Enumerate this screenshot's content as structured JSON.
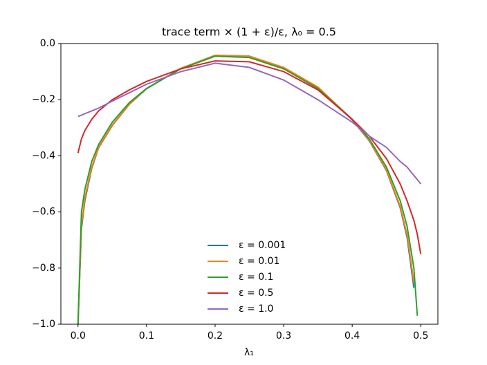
{
  "chart_data": {
    "type": "line",
    "title": "trace term × (1 + ε)/ε, λ₀ = 0.5",
    "x_label": "λ₁",
    "x": [
      0.0,
      0.005,
      0.01,
      0.02,
      0.03,
      0.05,
      0.075,
      0.1,
      0.15,
      0.2,
      0.25,
      0.3,
      0.35,
      0.4,
      0.425,
      0.45,
      0.47,
      0.48,
      0.49,
      0.495,
      0.5
    ],
    "series": [
      {
        "name": "ε = 0.001",
        "color": "#1f77b4",
        "values": [
          -1.0,
          -0.66,
          -0.56,
          -0.445,
          -0.372,
          -0.292,
          -0.216,
          -0.161,
          -0.089,
          -0.042,
          -0.045,
          -0.086,
          -0.156,
          -0.272,
          -0.347,
          -0.453,
          -0.585,
          -0.69,
          -0.87,
          null,
          null
        ]
      },
      {
        "name": "ε = 0.01",
        "color": "#ff7f0e",
        "values": [
          -1.0,
          -0.65,
          -0.55,
          -0.44,
          -0.37,
          -0.29,
          -0.215,
          -0.16,
          -0.088,
          -0.042,
          -0.045,
          -0.085,
          -0.155,
          -0.27,
          -0.345,
          -0.45,
          -0.58,
          -0.68,
          -0.85,
          null,
          null
        ]
      },
      {
        "name": "ε = 0.1",
        "color": "#2ca02c",
        "values": [
          -1.0,
          -0.6,
          -0.52,
          -0.42,
          -0.36,
          -0.28,
          -0.21,
          -0.16,
          -0.09,
          -0.045,
          -0.05,
          -0.09,
          -0.16,
          -0.27,
          -0.34,
          -0.44,
          -0.56,
          -0.65,
          -0.8,
          -0.97,
          null
        ]
      },
      {
        "name": "ε = 0.5",
        "color": "#d62728",
        "values": [
          -0.39,
          -0.34,
          -0.31,
          -0.27,
          -0.24,
          -0.2,
          -0.165,
          -0.135,
          -0.09,
          -0.062,
          -0.065,
          -0.1,
          -0.165,
          -0.27,
          -0.33,
          -0.41,
          -0.5,
          -0.56,
          -0.63,
          -0.68,
          -0.75
        ]
      },
      {
        "name": "ε = 1.0",
        "color": "#9467bd",
        "values": [
          -0.26,
          -0.255,
          -0.25,
          -0.24,
          -0.23,
          -0.205,
          -0.175,
          -0.145,
          -0.1,
          -0.07,
          -0.085,
          -0.13,
          -0.2,
          -0.28,
          -0.33,
          -0.37,
          -0.42,
          -0.44,
          -0.47,
          -0.485,
          -0.5
        ]
      }
    ],
    "xlim": [
      -0.025,
      0.525
    ],
    "ylim": [
      -1.0,
      0.0
    ],
    "xticks": [
      {
        "value": 0,
        "label": "0.0"
      },
      0.1,
      0.2,
      0.3,
      0.4,
      0.5
    ],
    "yticks": [
      {
        "value": -1.0,
        "label": "−1.0"
      },
      {
        "value": -0.8,
        "label": "−0.8"
      },
      {
        "value": -0.6,
        "label": "−0.6"
      },
      {
        "value": -0.4,
        "label": "−0.4"
      },
      {
        "value": -0.2,
        "label": "−0.2"
      },
      {
        "value": 0,
        "label": "0.0"
      }
    ],
    "legend": "lower center"
  }
}
